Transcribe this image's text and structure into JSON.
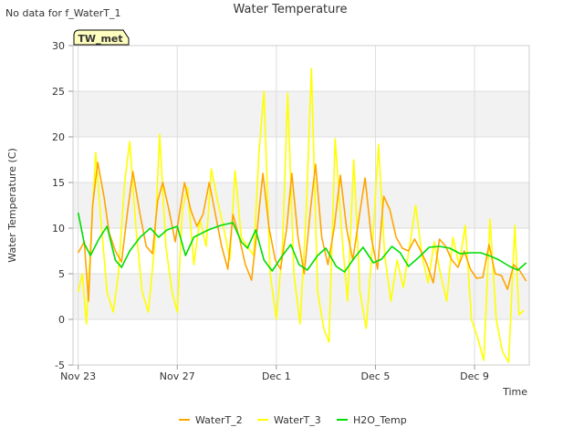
{
  "header": {
    "no_data_note": "No data for f_WaterT_1",
    "badge_label": "TW_met"
  },
  "chart_data": {
    "type": "line",
    "title": "Water Temperature",
    "xlabel": "Time",
    "ylabel": "Water Temperature (C)",
    "xlim": [
      "2023-11-23",
      "2023-12-11"
    ],
    "ylim": [
      -5,
      30
    ],
    "x_ticks": [
      {
        "label": "Nov 23",
        "date": "2023-11-23"
      },
      {
        "label": "Nov 27",
        "date": "2023-11-27"
      },
      {
        "label": "Dec 1",
        "date": "2023-12-01"
      },
      {
        "label": "Dec 5",
        "date": "2023-12-05"
      },
      {
        "label": "Dec 9",
        "date": "2023-12-09"
      }
    ],
    "y_ticks": [
      -5,
      0,
      5,
      10,
      15,
      20,
      25,
      30
    ],
    "background_bands": "alternating grey bands between y ticks",
    "legend_position": "bottom",
    "series": [
      {
        "name": "WaterT_2",
        "color": "#FFA500",
        "points": [
          [
            "2023-11-23 00:00",
            7.3
          ],
          [
            "2023-11-23 06:00",
            8.5
          ],
          [
            "2023-11-23 10:00",
            2.0
          ],
          [
            "2023-11-23 14:00",
            12.5
          ],
          [
            "2023-11-23 19:00",
            17.2
          ],
          [
            "2023-11-24 01:00",
            13.5
          ],
          [
            "2023-11-24 06:00",
            9.5
          ],
          [
            "2023-11-24 12:00",
            7.5
          ],
          [
            "2023-11-24 18:00",
            6.3
          ],
          [
            "2023-11-25 00:00",
            12.0
          ],
          [
            "2023-11-25 05:00",
            16.2
          ],
          [
            "2023-11-25 12:00",
            11.5
          ],
          [
            "2023-11-25 18:00",
            8.0
          ],
          [
            "2023-11-26 00:00",
            7.2
          ],
          [
            "2023-11-26 05:00",
            13.0
          ],
          [
            "2023-11-26 10:00",
            15.0
          ],
          [
            "2023-11-26 16:00",
            12.0
          ],
          [
            "2023-11-26 22:00",
            8.5
          ],
          [
            "2023-11-27 02:00",
            11.5
          ],
          [
            "2023-11-27 07:00",
            15.0
          ],
          [
            "2023-11-27 13:00",
            12.0
          ],
          [
            "2023-11-27 19:00",
            10.2
          ],
          [
            "2023-11-28 01:00",
            11.5
          ],
          [
            "2023-11-28 07:00",
            15.0
          ],
          [
            "2023-11-28 13:00",
            11.5
          ],
          [
            "2023-11-28 19:00",
            8.0
          ],
          [
            "2023-11-29 01:00",
            5.5
          ],
          [
            "2023-11-29 06:00",
            11.5
          ],
          [
            "2023-11-29 12:00",
            9.0
          ],
          [
            "2023-11-29 18:00",
            6.0
          ],
          [
            "2023-11-30 00:00",
            4.3
          ],
          [
            "2023-11-30 06:00",
            10.5
          ],
          [
            "2023-11-30 11:00",
            16.0
          ],
          [
            "2023-11-30 17:00",
            10.0
          ],
          [
            "2023-11-30 23:00",
            6.5
          ],
          [
            "2023-12-01 04:00",
            5.5
          ],
          [
            "2023-12-01 10:00",
            10.0
          ],
          [
            "2023-12-01 15:00",
            16.0
          ],
          [
            "2023-12-01 21:00",
            9.0
          ],
          [
            "2023-12-02 03:00",
            5.0
          ],
          [
            "2023-12-02 09:00",
            12.0
          ],
          [
            "2023-12-02 14:00",
            17.0
          ],
          [
            "2023-12-02 20:00",
            9.0
          ],
          [
            "2023-12-03 02:00",
            6.0
          ],
          [
            "2023-12-03 08:00",
            10.0
          ],
          [
            "2023-12-03 14:00",
            15.8
          ],
          [
            "2023-12-03 20:00",
            10.0
          ],
          [
            "2023-12-04 02:00",
            6.5
          ],
          [
            "2023-12-04 08:00",
            11.0
          ],
          [
            "2023-12-04 14:00",
            15.5
          ],
          [
            "2023-12-04 20:00",
            9.0
          ],
          [
            "2023-12-05 02:00",
            5.5
          ],
          [
            "2023-12-05 08:00",
            13.5
          ],
          [
            "2023-12-05 14:00",
            12.0
          ],
          [
            "2023-12-05 20:00",
            9.0
          ],
          [
            "2023-12-06 02:00",
            7.8
          ],
          [
            "2023-12-06 08:00",
            7.5
          ],
          [
            "2023-12-06 14:00",
            8.8
          ],
          [
            "2023-12-06 20:00",
            7.5
          ],
          [
            "2023-12-07 02:00",
            6.0
          ],
          [
            "2023-12-07 08:00",
            4.0
          ],
          [
            "2023-12-07 14:00",
            8.8
          ],
          [
            "2023-12-07 20:00",
            8.0
          ],
          [
            "2023-12-08 02:00",
            6.5
          ],
          [
            "2023-12-08 08:00",
            5.7
          ],
          [
            "2023-12-08 14:00",
            7.5
          ],
          [
            "2023-12-08 20:00",
            5.5
          ],
          [
            "2023-12-09 02:00",
            4.5
          ],
          [
            "2023-12-09 08:00",
            4.6
          ],
          [
            "2023-12-09 14:00",
            8.2
          ],
          [
            "2023-12-09 20:00",
            5.0
          ],
          [
            "2023-12-10 02:00",
            4.8
          ],
          [
            "2023-12-10 08:00",
            3.3
          ],
          [
            "2023-12-10 14:00",
            6.0
          ],
          [
            "2023-12-10 20:00",
            5.3
          ],
          [
            "2023-12-11 02:00",
            4.2
          ]
        ]
      },
      {
        "name": "WaterT_3",
        "color": "#FFFF00",
        "points": [
          [
            "2023-11-23 00:00",
            3.0
          ],
          [
            "2023-11-23 04:00",
            5.0
          ],
          [
            "2023-11-23 08:00",
            -0.5
          ],
          [
            "2023-11-23 12:00",
            8.0
          ],
          [
            "2023-11-23 17:00",
            18.3
          ],
          [
            "2023-11-23 22:00",
            11.0
          ],
          [
            "2023-11-24 04:00",
            3.0
          ],
          [
            "2023-11-24 10:00",
            0.8
          ],
          [
            "2023-11-24 15:00",
            5.0
          ],
          [
            "2023-11-24 21:00",
            15.0
          ],
          [
            "2023-11-25 02:00",
            19.5
          ],
          [
            "2023-11-25 08:00",
            10.0
          ],
          [
            "2023-11-25 14:00",
            3.0
          ],
          [
            "2023-11-25 20:00",
            0.8
          ],
          [
            "2023-11-26 02:00",
            8.0
          ],
          [
            "2023-11-26 07:00",
            20.3
          ],
          [
            "2023-11-26 13:00",
            8.0
          ],
          [
            "2023-11-26 19:00",
            3.0
          ],
          [
            "2023-11-27 00:00",
            0.8
          ],
          [
            "2023-11-27 05:00",
            12.0
          ],
          [
            "2023-11-27 10:00",
            14.5
          ],
          [
            "2023-11-27 16:00",
            6.0
          ],
          [
            "2023-11-27 22:00",
            11.0
          ],
          [
            "2023-11-28 04:00",
            8.0
          ],
          [
            "2023-11-28 09:00",
            16.5
          ],
          [
            "2023-11-28 15:00",
            13.0
          ],
          [
            "2023-11-28 21:00",
            10.0
          ],
          [
            "2023-11-29 03:00",
            6.5
          ],
          [
            "2023-11-29 08:00",
            16.3
          ],
          [
            "2023-11-29 14:00",
            9.0
          ],
          [
            "2023-11-29 20:00",
            8.0
          ],
          [
            "2023-11-30 02:00",
            7.0
          ],
          [
            "2023-11-30 07:00",
            18.0
          ],
          [
            "2023-11-30 12:00",
            25.0
          ],
          [
            "2023-11-30 18:00",
            5.0
          ],
          [
            "2023-12-01 00:00",
            0.0
          ],
          [
            "2023-12-01 06:00",
            8.0
          ],
          [
            "2023-12-01 11:00",
            24.8
          ],
          [
            "2023-12-01 17:00",
            5.0
          ],
          [
            "2023-12-01 23:00",
            -0.5
          ],
          [
            "2023-12-02 05:00",
            12.0
          ],
          [
            "2023-12-02 10:00",
            27.5
          ],
          [
            "2023-12-02 16:00",
            3.0
          ],
          [
            "2023-12-02 22:00",
            -1.0
          ],
          [
            "2023-12-03 03:00",
            -2.5
          ],
          [
            "2023-12-03 09:00",
            19.8
          ],
          [
            "2023-12-03 15:00",
            10.0
          ],
          [
            "2023-12-03 21:00",
            2.0
          ],
          [
            "2023-12-04 03:00",
            17.5
          ],
          [
            "2023-12-04 09:00",
            3.0
          ],
          [
            "2023-12-04 15:00",
            -1.0
          ],
          [
            "2023-12-04 21:00",
            8.0
          ],
          [
            "2023-12-05 03:00",
            19.2
          ],
          [
            "2023-12-05 09:00",
            7.0
          ],
          [
            "2023-12-05 15:00",
            2.0
          ],
          [
            "2023-12-05 21:00",
            6.5
          ],
          [
            "2023-12-06 03:00",
            3.5
          ],
          [
            "2023-12-06 09:00",
            8.0
          ],
          [
            "2023-12-06 15:00",
            12.5
          ],
          [
            "2023-12-06 21:00",
            7.0
          ],
          [
            "2023-12-07 03:00",
            4.0
          ],
          [
            "2023-12-07 09:00",
            8.5
          ],
          [
            "2023-12-07 15:00",
            5.0
          ],
          [
            "2023-12-07 21:00",
            2.0
          ],
          [
            "2023-12-08 03:00",
            9.0
          ],
          [
            "2023-12-08 09:00",
            6.0
          ],
          [
            "2023-12-08 15:00",
            10.3
          ],
          [
            "2023-12-08 21:00",
            0.0
          ],
          [
            "2023-12-09 03:00",
            -2.0
          ],
          [
            "2023-12-09 09:00",
            -4.5
          ],
          [
            "2023-12-09 15:00",
            11.0
          ],
          [
            "2023-12-09 21:00",
            0.0
          ],
          [
            "2023-12-10 03:00",
            -3.5
          ],
          [
            "2023-12-10 09:00",
            -4.7
          ],
          [
            "2023-12-10 15:00",
            10.3
          ],
          [
            "2023-12-10 19:00",
            0.5
          ],
          [
            "2023-12-11 00:00",
            1.0
          ]
        ]
      },
      {
        "name": "H2O_Temp",
        "color": "#00DD00",
        "points": [
          [
            "2023-11-23 00:00",
            11.7
          ],
          [
            "2023-11-23 06:00",
            8.3
          ],
          [
            "2023-11-23 12:00",
            7.0
          ],
          [
            "2023-11-23 20:00",
            8.8
          ],
          [
            "2023-11-24 04:00",
            10.2
          ],
          [
            "2023-11-24 12:00",
            6.5
          ],
          [
            "2023-11-24 18:00",
            5.7
          ],
          [
            "2023-11-25 02:00",
            7.5
          ],
          [
            "2023-11-25 12:00",
            9.0
          ],
          [
            "2023-11-25 22:00",
            10.0
          ],
          [
            "2023-11-26 06:00",
            9.0
          ],
          [
            "2023-11-26 14:00",
            9.8
          ],
          [
            "2023-11-27 00:00",
            10.2
          ],
          [
            "2023-11-27 08:00",
            7.0
          ],
          [
            "2023-11-27 16:00",
            9.0
          ],
          [
            "2023-11-28 06:00",
            9.8
          ],
          [
            "2023-11-28 18:00",
            10.3
          ],
          [
            "2023-11-29 06:00",
            10.6
          ],
          [
            "2023-11-29 14:00",
            8.5
          ],
          [
            "2023-11-29 20:00",
            7.8
          ],
          [
            "2023-11-30 04:00",
            9.8
          ],
          [
            "2023-11-30 12:00",
            6.5
          ],
          [
            "2023-11-30 20:00",
            5.3
          ],
          [
            "2023-12-01 06:00",
            7.0
          ],
          [
            "2023-12-01 14:00",
            8.2
          ],
          [
            "2023-12-01 22:00",
            6.0
          ],
          [
            "2023-12-02 06:00",
            5.4
          ],
          [
            "2023-12-02 16:00",
            7.0
          ],
          [
            "2023-12-03 00:00",
            7.8
          ],
          [
            "2023-12-03 10:00",
            5.8
          ],
          [
            "2023-12-03 18:00",
            5.2
          ],
          [
            "2023-12-04 04:00",
            6.8
          ],
          [
            "2023-12-04 12:00",
            7.9
          ],
          [
            "2023-12-04 22:00",
            6.2
          ],
          [
            "2023-12-05 06:00",
            6.6
          ],
          [
            "2023-12-05 16:00",
            8.0
          ],
          [
            "2023-12-06 00:00",
            7.3
          ],
          [
            "2023-12-06 08:00",
            5.8
          ],
          [
            "2023-12-06 18:00",
            6.8
          ],
          [
            "2023-12-07 04:00",
            7.9
          ],
          [
            "2023-12-07 14:00",
            8.0
          ],
          [
            "2023-12-08 00:00",
            7.8
          ],
          [
            "2023-12-08 10:00",
            7.2
          ],
          [
            "2023-12-08 20:00",
            7.3
          ],
          [
            "2023-12-09 06:00",
            7.3
          ],
          [
            "2023-12-09 16:00",
            6.9
          ],
          [
            "2023-12-10 00:00",
            6.5
          ],
          [
            "2023-12-10 10:00",
            5.8
          ],
          [
            "2023-12-10 18:00",
            5.4
          ],
          [
            "2023-12-11 02:00",
            6.2
          ]
        ]
      }
    ]
  }
}
